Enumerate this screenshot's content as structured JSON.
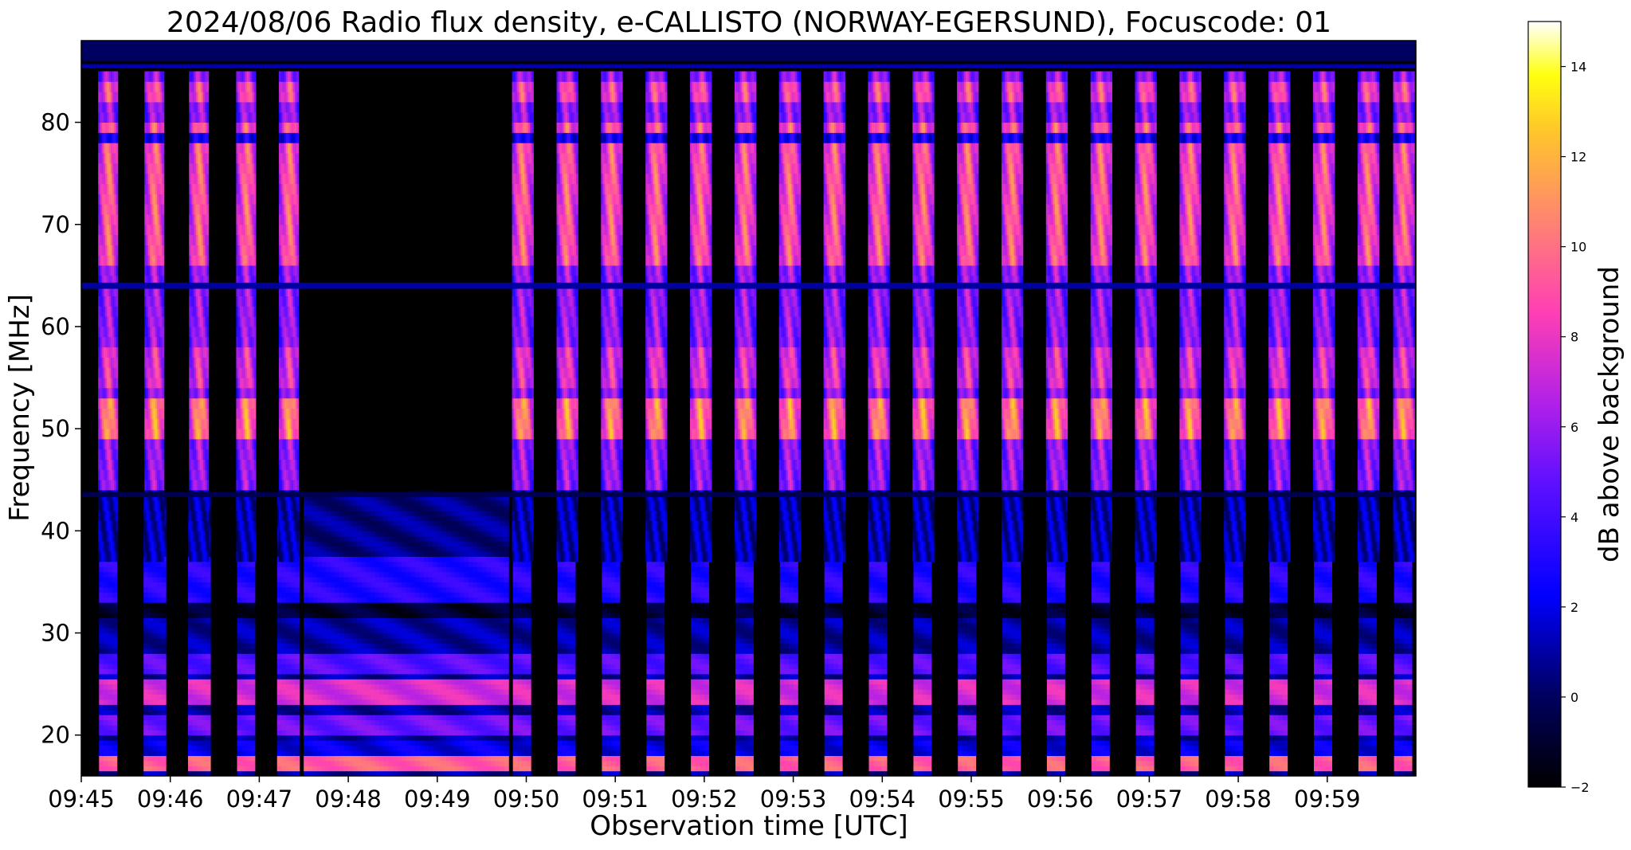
{
  "chart_data": {
    "type": "heatmap",
    "title": "2024/08/06  Radio flux density, e-CALLISTO (NORWAY-EGERSUND), Focuscode: 01",
    "xlabel": "Observation time [UTC]",
    "ylabel": "Frequency [MHz]",
    "colorbar_label": "dB above background",
    "colormap": "gnuplot2",
    "x": {
      "start": "09:45:00",
      "end": "09:59:57",
      "ticks": [
        "09:45",
        "09:46",
        "09:47",
        "09:48",
        "09:49",
        "09:50",
        "09:51",
        "09:52",
        "09:53",
        "09:54",
        "09:55",
        "09:56",
        "09:57",
        "09:58",
        "09:59"
      ]
    },
    "y": {
      "range_mhz": [
        16,
        88
      ],
      "ticks": [
        20,
        30,
        40,
        50,
        60,
        70,
        80
      ]
    },
    "colorbar": {
      "range_db": [
        -2,
        15
      ],
      "ticks": [
        -2,
        0,
        2,
        4,
        6,
        8,
        10,
        12,
        14
      ]
    },
    "features": {
      "quiet_gap_minutes": [
        2.5,
        4.8
      ],
      "low_band_edge_mhz": 44,
      "burst_center_minutes": [
        0.3,
        0.82,
        1.32,
        1.85,
        2.33,
        4.95,
        5.45,
        5.95,
        6.45,
        6.95,
        7.45,
        7.95,
        8.45,
        8.95,
        9.45,
        9.95,
        10.45,
        10.95,
        11.45,
        11.95,
        12.45,
        12.95,
        13.45,
        13.95,
        14.45,
        14.85
      ],
      "notes": "Periodic vertical bursts of 2–14 dB above background from ~37 to 85 MHz; lower band (16–44 MHz) shows continuous emission 0–10 dB with dark gaps between bursts; 09:47:30–09:49:48 quiet above 44 MHz."
    }
  }
}
